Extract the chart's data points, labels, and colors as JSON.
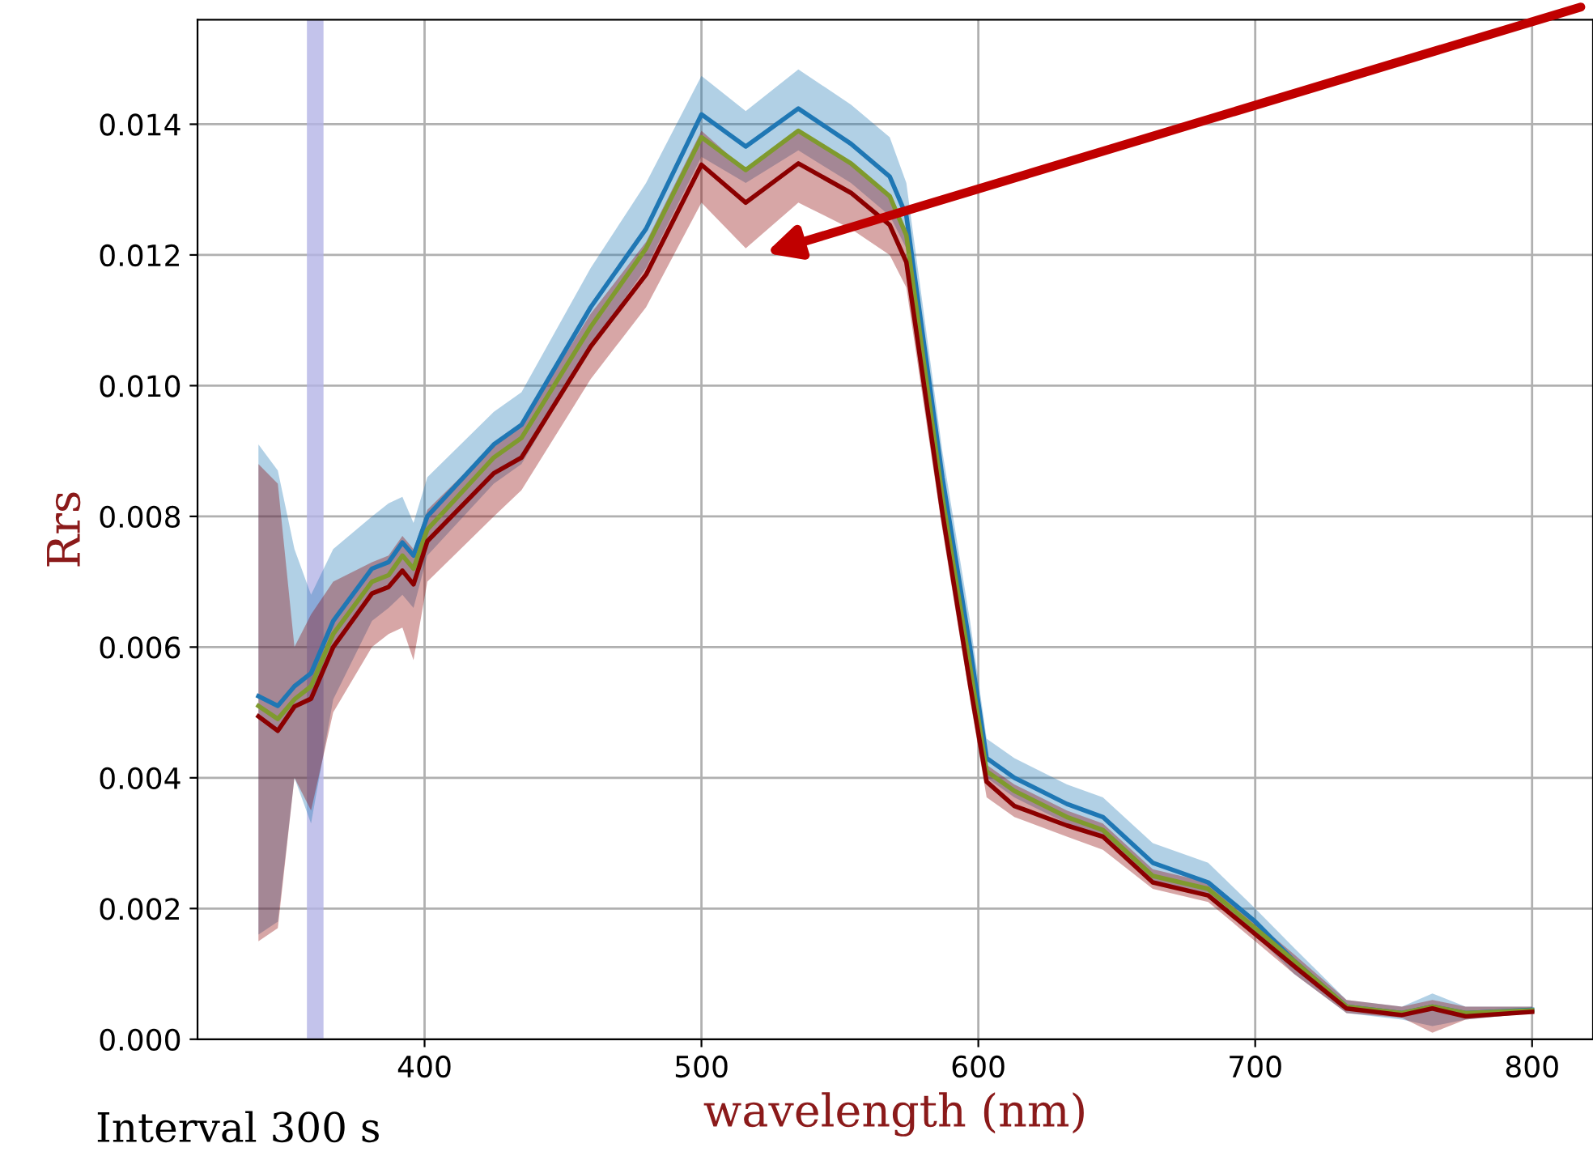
{
  "chart_data": {
    "type": "line",
    "xlabel": "wavelength (nm)",
    "ylabel": "Rrs",
    "annotations": [
      "Interval 300 s"
    ],
    "x": [
      340,
      347,
      353,
      359,
      367,
      381,
      387,
      392,
      396,
      401,
      425,
      435,
      460,
      480,
      500,
      516,
      535,
      554,
      568,
      574,
      587,
      597,
      603,
      613,
      632,
      645,
      663,
      683,
      700,
      714,
      733,
      753,
      764,
      776,
      800
    ],
    "series": [
      {
        "color": "#1f77b4",
        "values": [
          0.00525,
          0.0051,
          0.0054,
          0.0056,
          0.0064,
          0.0072,
          0.0073,
          0.0076,
          0.0074,
          0.008,
          0.0091,
          0.0094,
          0.0112,
          0.0124,
          0.01415,
          0.01366,
          0.01424,
          0.0137,
          0.0132,
          0.0126,
          0.0086,
          0.006,
          0.0043,
          0.004,
          0.0036,
          0.0034,
          0.0027,
          0.0024,
          0.0018,
          0.0012,
          0.0005,
          0.0004,
          0.0005,
          0.0004,
          0.00045
        ],
        "upper": [
          0.0091,
          0.0087,
          0.0075,
          0.0068,
          0.0075,
          0.008,
          0.0082,
          0.0083,
          0.0079,
          0.0086,
          0.0096,
          0.0099,
          0.0118,
          0.0131,
          0.01474,
          0.0142,
          0.01484,
          0.0143,
          0.0138,
          0.0131,
          0.009,
          0.0064,
          0.0046,
          0.0043,
          0.0039,
          0.0037,
          0.003,
          0.0027,
          0.002,
          0.0014,
          0.0006,
          0.0005,
          0.0007,
          0.0005,
          0.0005
        ],
        "lower": [
          0.0016,
          0.0018,
          0.004,
          0.0033,
          0.0052,
          0.0064,
          0.0066,
          0.0068,
          0.0066,
          0.0074,
          0.0085,
          0.0088,
          0.0106,
          0.0118,
          0.0135,
          0.0131,
          0.0136,
          0.0131,
          0.0126,
          0.0121,
          0.0082,
          0.0056,
          0.004,
          0.0037,
          0.0033,
          0.0031,
          0.0024,
          0.0022,
          0.0016,
          0.001,
          0.0004,
          0.0003,
          0.0002,
          0.0003,
          0.0004
        ]
      },
      {
        "color": "#7f9a2e",
        "values": [
          0.0051,
          0.0049,
          0.0052,
          0.0054,
          0.0062,
          0.007,
          0.0071,
          0.0074,
          0.0072,
          0.0078,
          0.0089,
          0.0092,
          0.0109,
          0.0121,
          0.0138,
          0.0133,
          0.0139,
          0.0134,
          0.0129,
          0.0123,
          0.0083,
          0.0057,
          0.0041,
          0.0038,
          0.0034,
          0.0032,
          0.0025,
          0.0023,
          0.0017,
          0.0012,
          0.0005,
          0.0004,
          0.0005,
          0.0004,
          0.00044
        ]
      },
      {
        "color": "#8b0000",
        "values": [
          0.00494,
          0.00472,
          0.00509,
          0.00521,
          0.006,
          0.00682,
          0.00692,
          0.00717,
          0.00696,
          0.00762,
          0.00866,
          0.0089,
          0.0106,
          0.0117,
          0.01338,
          0.0128,
          0.0134,
          0.01295,
          0.01246,
          0.01189,
          0.00806,
          0.00543,
          0.00394,
          0.00357,
          0.00327,
          0.0031,
          0.0024,
          0.0022,
          0.00161,
          0.00112,
          0.00047,
          0.00037,
          0.00047,
          0.00035,
          0.00042
        ],
        "upper": [
          0.0088,
          0.0085,
          0.006,
          0.0065,
          0.007,
          0.0073,
          0.0074,
          0.0077,
          0.0075,
          0.0081,
          0.0091,
          0.0094,
          0.0111,
          0.0122,
          0.0139,
          0.0133,
          0.0139,
          0.0134,
          0.0129,
          0.0123,
          0.0084,
          0.0058,
          0.0042,
          0.0039,
          0.0035,
          0.0033,
          0.0026,
          0.0024,
          0.0018,
          0.0013,
          0.0006,
          0.0005,
          0.0006,
          0.0005,
          0.0005
        ],
        "lower": [
          0.0015,
          0.0017,
          0.004,
          0.0035,
          0.005,
          0.006,
          0.0062,
          0.0063,
          0.0058,
          0.007,
          0.008,
          0.0084,
          0.0101,
          0.0112,
          0.0128,
          0.0121,
          0.0128,
          0.0124,
          0.012,
          0.0115,
          0.0078,
          0.0052,
          0.0037,
          0.0034,
          0.0031,
          0.0029,
          0.0023,
          0.0021,
          0.0015,
          0.001,
          0.0004,
          0.00033,
          0.0001,
          0.0003,
          0.0004
        ]
      }
    ],
    "bands": [
      {
        "axis": "x",
        "from": 357.5,
        "to": 363.5,
        "color": "#b4b4e6"
      }
    ],
    "xlim": [
      318,
      822
    ],
    "ylim": [
      0,
      0.0156
    ],
    "xticks": [
      400,
      500,
      600,
      700,
      800
    ],
    "yticks": [
      {
        "value": 0,
        "label": "0.000"
      },
      {
        "value": 0.002,
        "label": "0.002"
      },
      {
        "value": 0.004,
        "label": "0.004"
      },
      {
        "value": 0.006,
        "label": "0.006"
      },
      {
        "value": 0.008,
        "label": "0.008"
      },
      {
        "value": 0.01,
        "label": "0.010"
      },
      {
        "value": 0.012,
        "label": "0.012"
      },
      {
        "value": 0.014,
        "label": "0.014"
      }
    ],
    "grid": true
  }
}
